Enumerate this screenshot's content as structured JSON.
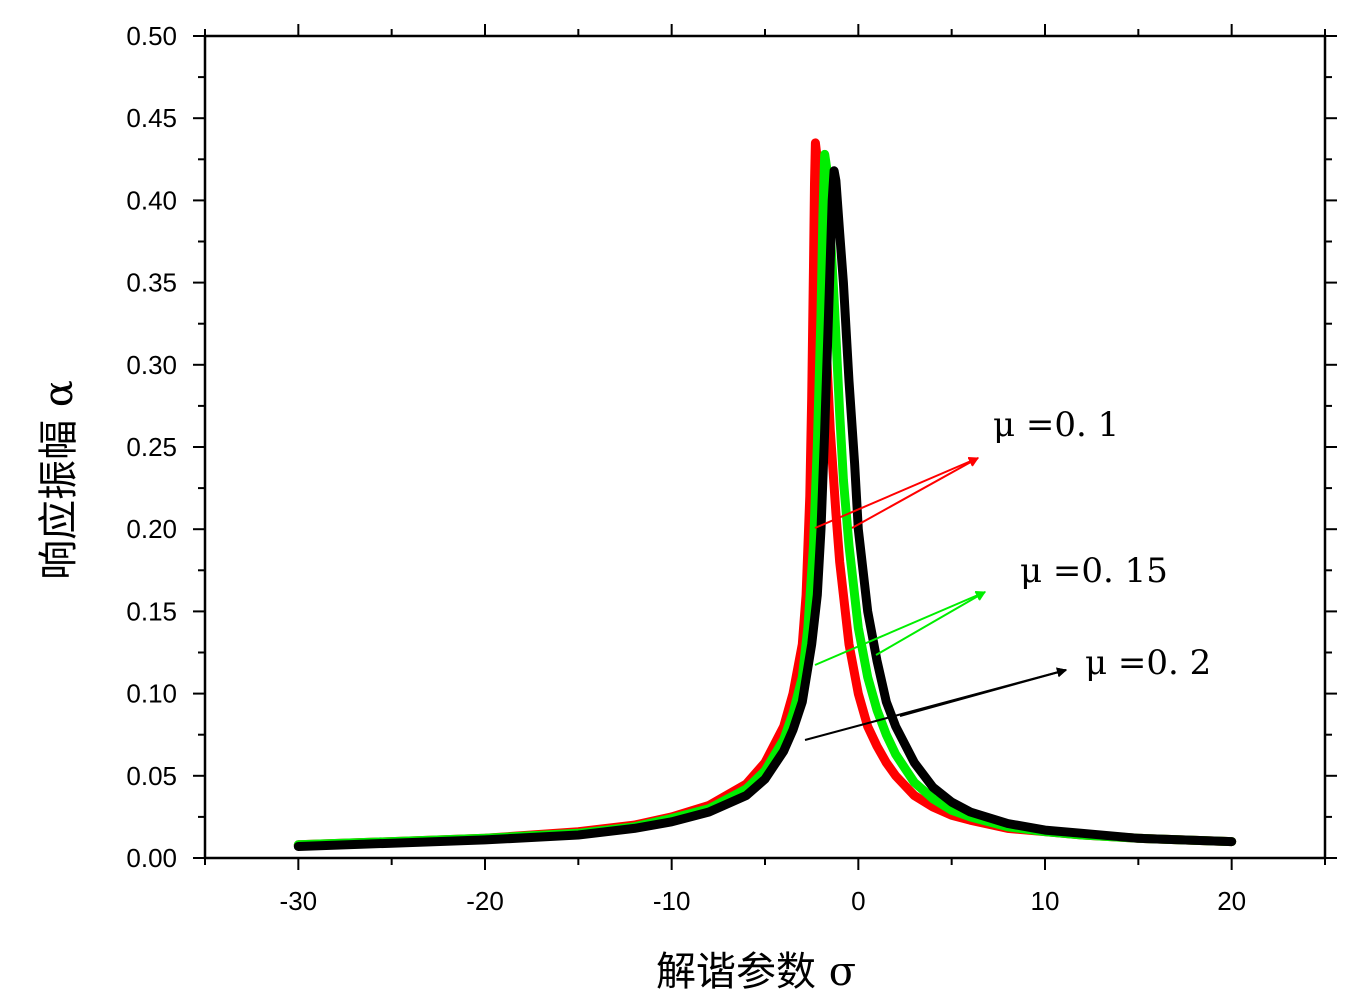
{
  "chart_data": {
    "type": "line",
    "xlabel": "解谐参数 σ",
    "ylabel": "响应振幅 α",
    "xlim": [
      -35,
      25
    ],
    "ylim": [
      0,
      0.5
    ],
    "x_ticks": [
      "-30",
      "-20",
      "-10",
      "0",
      "10",
      "20"
    ],
    "x_tick_values": [
      -30,
      -20,
      -10,
      0,
      10,
      20
    ],
    "y_ticks": [
      "0.00",
      "0.05",
      "0.10",
      "0.15",
      "0.20",
      "0.25",
      "0.30",
      "0.35",
      "0.40",
      "0.45",
      "0.50"
    ],
    "y_tick_values": [
      0,
      0.05,
      0.1,
      0.15,
      0.2,
      0.25,
      0.3,
      0.35,
      0.4,
      0.45,
      0.5
    ],
    "grid": false,
    "series": [
      {
        "name": "μ =0. 1",
        "color": "#ff0000",
        "x": [
          -30,
          -25,
          -20,
          -15,
          -12,
          -10,
          -8,
          -6,
          -5,
          -4,
          -3.5,
          -3,
          -2.8,
          -2.6,
          -2.5,
          -2.4,
          -2.35,
          -2.3,
          -2.2,
          -2.0,
          -1.8,
          -1.5,
          -1.2,
          -1.0,
          -0.5,
          0,
          0.5,
          1,
          1.5,
          2,
          3,
          4,
          5,
          6,
          8,
          10,
          12,
          15,
          20
        ],
        "y": [
          0.008,
          0.01,
          0.012,
          0.016,
          0.02,
          0.025,
          0.032,
          0.045,
          0.058,
          0.08,
          0.1,
          0.13,
          0.16,
          0.22,
          0.28,
          0.36,
          0.41,
          0.435,
          0.425,
          0.38,
          0.33,
          0.26,
          0.21,
          0.18,
          0.13,
          0.1,
          0.08,
          0.068,
          0.058,
          0.05,
          0.038,
          0.031,
          0.026,
          0.023,
          0.018,
          0.016,
          0.014,
          0.012,
          0.01
        ]
      },
      {
        "name": "μ =0. 15",
        "color": "#00ee00",
        "x": [
          -30,
          -25,
          -20,
          -15,
          -12,
          -10,
          -8,
          -6,
          -5,
          -4,
          -3.5,
          -3,
          -2.7,
          -2.4,
          -2.2,
          -2.0,
          -1.9,
          -1.8,
          -1.7,
          -1.5,
          -1.3,
          -1.0,
          -0.8,
          -0.5,
          0,
          0.5,
          1,
          1.5,
          2,
          3,
          4,
          5,
          6,
          8,
          10,
          12,
          15,
          20
        ],
        "y": [
          0.008,
          0.01,
          0.012,
          0.015,
          0.019,
          0.024,
          0.03,
          0.042,
          0.053,
          0.072,
          0.088,
          0.11,
          0.14,
          0.19,
          0.25,
          0.33,
          0.39,
          0.428,
          0.42,
          0.38,
          0.34,
          0.27,
          0.23,
          0.19,
          0.14,
          0.11,
          0.09,
          0.075,
          0.063,
          0.046,
          0.036,
          0.029,
          0.025,
          0.019,
          0.016,
          0.014,
          0.012,
          0.01
        ]
      },
      {
        "name": "μ =0. 2",
        "color": "#000000",
        "x": [
          -30,
          -25,
          -20,
          -15,
          -12,
          -10,
          -8,
          -6,
          -5,
          -4,
          -3.5,
          -3,
          -2.5,
          -2.2,
          -2.0,
          -1.8,
          -1.6,
          -1.4,
          -1.3,
          -1.2,
          -1.0,
          -0.8,
          -0.5,
          -0.2,
          0,
          0.5,
          1,
          1.5,
          2,
          3,
          4,
          5,
          6,
          8,
          10,
          12,
          15,
          20
        ],
        "y": [
          0.007,
          0.009,
          0.011,
          0.014,
          0.018,
          0.022,
          0.028,
          0.038,
          0.048,
          0.065,
          0.078,
          0.095,
          0.13,
          0.16,
          0.2,
          0.26,
          0.33,
          0.4,
          0.418,
          0.412,
          0.38,
          0.35,
          0.29,
          0.24,
          0.2,
          0.15,
          0.12,
          0.095,
          0.08,
          0.058,
          0.043,
          0.034,
          0.028,
          0.021,
          0.017,
          0.015,
          0.012,
          0.01
        ]
      }
    ],
    "annotations": [
      {
        "text": "μ =0. 1",
        "color": "#ff0000"
      },
      {
        "text": "μ =0. 15",
        "color": "#00ee00"
      },
      {
        "text": "μ =0. 2",
        "color": "#000000"
      }
    ]
  }
}
